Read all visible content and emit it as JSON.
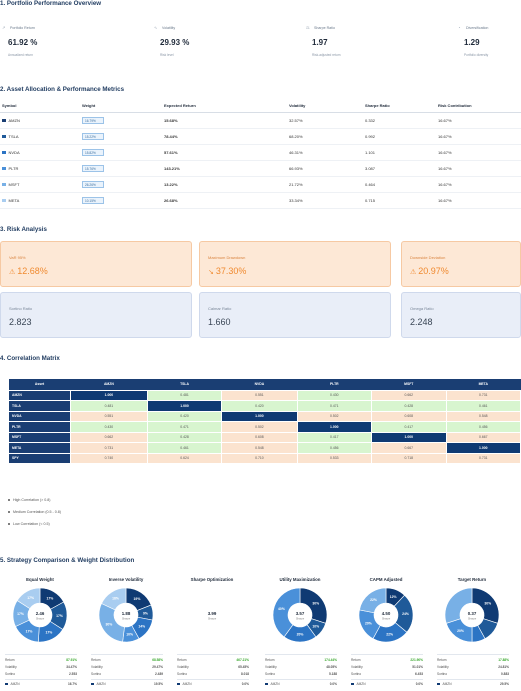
{
  "section1": {
    "title": "1. Portfolio Performance Overview",
    "cards": [
      {
        "label": "Portfolio Return",
        "value": "61.92 %",
        "sub": "Annualized return",
        "icon": "trend-up-icon"
      },
      {
        "label": "Volatility",
        "value": "29.93 %",
        "sub": "Risk level",
        "icon": "pulse-icon"
      },
      {
        "label": "Sharpe Ratio",
        "value": "1.97",
        "sub": "Risk-adjusted return",
        "icon": "scale-icon"
      },
      {
        "label": "Diversification",
        "value": "1.29",
        "sub": "Portfolio diversity",
        "icon": "pie-icon"
      }
    ]
  },
  "section2": {
    "title": "2. Asset Allocation & Performance Metrics",
    "headers": [
      "Symbol",
      "Weight",
      "Expected Return",
      "Volatility",
      "Sharpe Ratio",
      "Risk Contribution"
    ],
    "rows": [
      {
        "symbol": "AMZN",
        "weight": "16.79%",
        "ret": "15.68%",
        "vol": "32.57%",
        "sharpe": "0.332",
        "risk": "16.67%",
        "color": "#1a3e73"
      },
      {
        "symbol": "TSLA",
        "weight": "15.22%",
        "ret": "78.44%",
        "vol": "68.20%",
        "sharpe": "0.992",
        "risk": "16.67%",
        "color": "#1f5a99"
      },
      {
        "symbol": "NVDA",
        "weight": "15.82%",
        "ret": "57.61%",
        "vol": "46.31%",
        "sharpe": "1.101",
        "risk": "16.67%",
        "color": "#2c74c4"
      },
      {
        "symbol": "PLTR",
        "weight": "15.76%",
        "ret": "143.21%",
        "vol": "66.93%",
        "sharpe": "3.087",
        "risk": "16.67%",
        "color": "#4a90d9"
      },
      {
        "symbol": "MSFT",
        "weight": "26.26%",
        "ret": "13.22%",
        "vol": "21.72%",
        "sharpe": "0.464",
        "risk": "16.67%",
        "color": "#78b0e6"
      },
      {
        "symbol": "META",
        "weight": "10.15%",
        "ret": "26.68%",
        "vol": "33.34%",
        "sharpe": "0.715",
        "risk": "16.67%",
        "color": "#a9cdf0"
      }
    ]
  },
  "section3": {
    "title": "3. Risk Analysis",
    "cards": [
      {
        "label": "VaR 95%",
        "value": "12.68%",
        "icon": "warning-icon"
      },
      {
        "label": "Maximum Drawdown",
        "value": "37.30%",
        "icon": "trend-down-icon"
      },
      {
        "label": "Downside Deviation",
        "value": "20.97%",
        "icon": "warning-icon"
      },
      {
        "label": "Sortino Ratio",
        "value": "2.823"
      },
      {
        "label": "Calmar Ratio",
        "value": "1.660"
      },
      {
        "label": "Omega Ratio",
        "value": "2.248"
      }
    ]
  },
  "section4": {
    "title": "4. Correlation Matrix",
    "header_corner": "Asset",
    "columns": [
      "AMZN",
      "TSLA",
      "NVDA",
      "PLTR",
      "MSFT",
      "META"
    ],
    "rows": [
      {
        "name": "AMZN",
        "values": [
          "1.000",
          "0.481",
          "0.551",
          "0.430",
          "0.662",
          "0.731"
        ]
      },
      {
        "name": "TSLA",
        "values": [
          "0.481",
          "1.000",
          "0.420",
          "0.471",
          "0.428",
          "0.461"
        ]
      },
      {
        "name": "NVDA",
        "values": [
          "0.551",
          "0.420",
          "1.000",
          "0.502",
          "0.608",
          "0.548"
        ]
      },
      {
        "name": "PLTR",
        "values": [
          "0.430",
          "0.471",
          "0.502",
          "1.000",
          "0.417",
          "0.456"
        ]
      },
      {
        "name": "MSFT",
        "values": [
          "0.662",
          "0.428",
          "0.608",
          "0.417",
          "1.000",
          "0.667"
        ]
      },
      {
        "name": "META",
        "values": [
          "0.731",
          "0.461",
          "0.548",
          "0.456",
          "0.667",
          "1.000"
        ]
      },
      {
        "name": "SPY",
        "values": [
          "0.740",
          "0.624",
          "0.710",
          "0.533",
          "0.718",
          "0.731"
        ]
      }
    ],
    "legend": [
      "High Correlation (> 0.8)",
      "Medium Correlation (0.5 - 0.8)",
      "Low Correlation (< 0.5)"
    ],
    "colors": {
      "high": "#0f3a73",
      "medium": "#fbe3cf",
      "low": "#d8f5cf"
    }
  },
  "section5": {
    "title": "5. Strategy Comparison & Weight Distribution",
    "strategies": [
      {
        "name": "Equal Weight",
        "center": "2.46",
        "center_sub": "Sharpe",
        "slices": [
          17,
          17,
          17,
          17,
          16,
          16
        ],
        "slice_labels": [
          "17%",
          "17%",
          "17%",
          "17%",
          "17%",
          "17%"
        ],
        "ret": "87.91%",
        "vol": "34.47%",
        "sortino": "2.553",
        "first": "16.7%"
      },
      {
        "name": "Inverse Volatility",
        "center": "1.88",
        "center_sub": "Sharpe",
        "slices": [
          19,
          9,
          14,
          10,
          30,
          18
        ],
        "slice_labels": [
          "19%",
          "9%",
          "14%",
          "10%",
          "30%",
          "18%"
        ],
        "ret": "68.58%",
        "vol": "29.47%",
        "sortino": "2.489",
        "first": "19.5%"
      },
      {
        "name": "Sharpe Optimization",
        "center": "3.99",
        "center_sub": "Sharpe",
        "slices": [],
        "slice_labels": [],
        "ret": "467.21%",
        "vol": "65.45%",
        "sortino": "8.018",
        "first": "0.0%"
      },
      {
        "name": "Utility Maximization",
        "center": "3.57",
        "center_sub": "Sharpe",
        "slices": [
          30,
          10,
          20,
          40
        ],
        "slice_labels": [
          "30%",
          "10%",
          "20%",
          "40%"
        ],
        "ret": "174.44%",
        "vol": "48.05%",
        "sortino": "5.188",
        "first": "0.0%"
      },
      {
        "name": "CAPM Adjusted",
        "center": "4.50",
        "center_sub": "Sharpe",
        "slices": [
          12,
          24,
          22,
          20,
          22
        ],
        "slice_labels": [
          "12%",
          "24%",
          "22%",
          "20%",
          "22%"
        ],
        "ret": "221.90%",
        "vol": "51.01%",
        "sortino": "6.453",
        "first": "0.0%"
      },
      {
        "name": "Target Return",
        "center": "0.37",
        "center_sub": "Sharpe",
        "slices": [
          30,
          12,
          8,
          20,
          30
        ],
        "slice_labels": [
          "30%",
          "",
          "",
          "20%",
          ""
        ],
        "ret": "17.88%",
        "vol": "24.81%",
        "sortino": "0.883",
        "first": "29.5%"
      }
    ],
    "metric_labels": {
      "ret": "Return",
      "vol": "Volatility",
      "sortino": "Sortino"
    },
    "first_asset": "AMZN"
  }
}
